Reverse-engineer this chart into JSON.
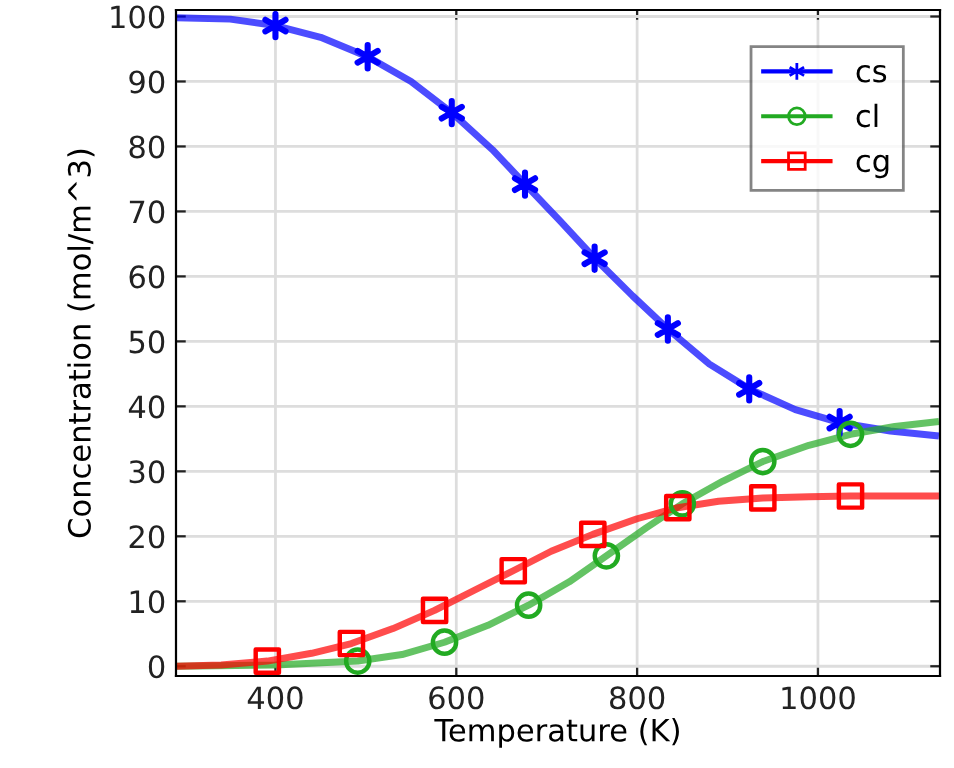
{
  "chart_data": {
    "type": "line",
    "xlabel": "Temperature (K)",
    "ylabel": "Concentration (mol/m^3)",
    "xlim": [
      290,
      1135
    ],
    "ylim": [
      -1.5,
      101
    ],
    "xticks": [
      400,
      600,
      800,
      1000
    ],
    "yticks": [
      0,
      10,
      20,
      30,
      40,
      50,
      60,
      70,
      80,
      90,
      100
    ],
    "grid": true,
    "legend": "top right",
    "series": [
      {
        "name": "cs",
        "color": "#0000ff",
        "x": [
          290,
          350,
          400,
          450,
          502,
          550,
          595,
          640,
          676,
          715,
          753,
          795,
          834,
          880,
          924,
          975,
          1024,
          1080,
          1130
        ],
        "values": [
          99.8,
          99.6,
          98.6,
          96.8,
          93.8,
          90,
          85.2,
          79.5,
          74.2,
          68.5,
          62.8,
          57,
          51.9,
          46.5,
          42.7,
          39.5,
          37.5,
          36.2,
          35.5
        ]
      },
      {
        "type": "scatter",
        "color": "#0000ff",
        "marker": "cross",
        "x": [
          400,
          502,
          595,
          676,
          753,
          834,
          924,
          1024
        ],
        "values": [
          98.6,
          93.8,
          85.2,
          74.2,
          62.8,
          51.9,
          42.7,
          37.5
        ]
      },
      {
        "name": "cl",
        "color": "#22aa22",
        "x": [
          290,
          400,
          491,
          540,
          587,
          635,
          680,
          725,
          766,
          810,
          850,
          895,
          939,
          990,
          1036,
          1085,
          1130
        ],
        "values": [
          0,
          0.2,
          0.8,
          1.8,
          3.7,
          6.3,
          9.4,
          13,
          17,
          21.3,
          25,
          28.5,
          31.5,
          34,
          35.7,
          36.9,
          37.6
        ]
      },
      {
        "type": "scatter",
        "color": "#22aa22",
        "marker": "circle",
        "x": [
          491,
          587,
          680,
          766,
          850,
          939,
          1036
        ],
        "values": [
          0.8,
          3.7,
          9.4,
          17.0,
          25.0,
          31.5,
          35.7
        ]
      },
      {
        "name": "cg",
        "color": "#ff0000",
        "x": [
          290,
          340,
          391,
          440,
          484,
          530,
          576,
          620,
          663,
          705,
          751,
          800,
          845,
          890,
          939,
          990,
          1036,
          1085,
          1130
        ],
        "values": [
          0,
          0.2,
          0.8,
          2,
          3.5,
          5.8,
          8.6,
          11.7,
          14.7,
          17.7,
          20.3,
          22.7,
          24.4,
          25.4,
          25.9,
          26.1,
          26.2,
          26.2,
          26.2
        ]
      },
      {
        "type": "scatter",
        "color": "#ff0000",
        "marker": "square",
        "x": [
          391,
          484,
          576,
          663,
          751,
          845,
          939,
          1036
        ],
        "values": [
          0.8,
          3.5,
          8.6,
          14.7,
          20.3,
          24.4,
          25.9,
          26.2
        ]
      }
    ]
  }
}
